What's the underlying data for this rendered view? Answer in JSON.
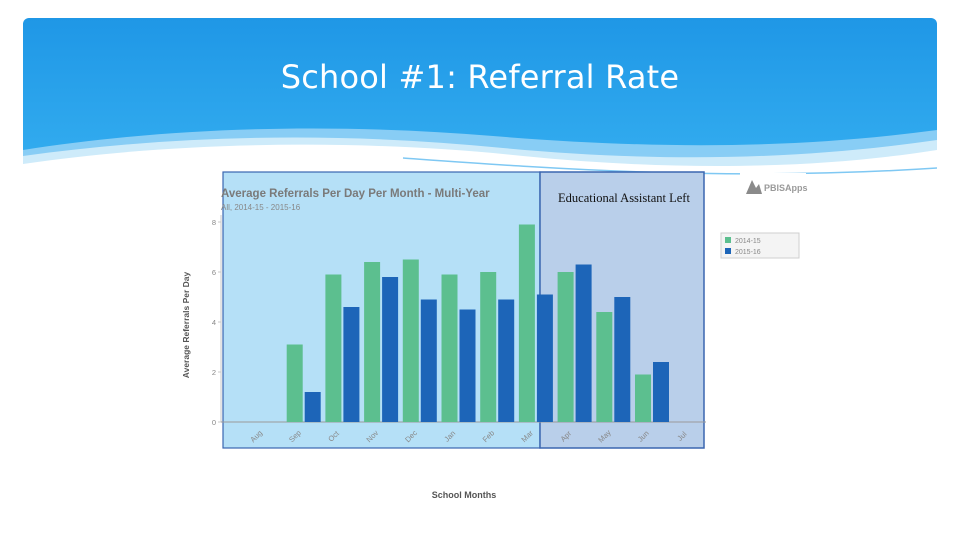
{
  "slide": {
    "title": "School #1: Referral Rate"
  },
  "annotation": {
    "text": "Educational Assistant Left"
  },
  "logo": {
    "text": "PBISApps"
  },
  "colors": {
    "series_2014": "#5cbf8f",
    "series_2015": "#1d65b8",
    "highlight_fill": "#b9cfea",
    "highlight_border": "#3a66b0",
    "plot_bg": "#b5e0f7"
  },
  "chart_data": {
    "type": "bar",
    "title": "Average Referrals Per Day Per Month - Multi-Year",
    "subtitle": "All, 2014-15 - 2015-16",
    "xlabel": "School Months",
    "ylabel": "Average Referrals Per Day",
    "ylim": [
      0,
      8
    ],
    "yticks": [
      "0",
      "2",
      "4",
      "6",
      "8"
    ],
    "grid": false,
    "legend_position": "right",
    "categories": [
      "Aug",
      "Sep",
      "Oct",
      "Nov",
      "Dec",
      "Jan",
      "Feb",
      "Mar",
      "Apr",
      "May",
      "Jun",
      "Jul"
    ],
    "series": [
      {
        "name": "2014-15",
        "values": [
          0,
          3.1,
          5.9,
          6.4,
          6.5,
          5.9,
          6.0,
          7.9,
          6.0,
          4.4,
          1.9,
          0
        ]
      },
      {
        "name": "2015-16",
        "values": [
          0,
          1.2,
          4.6,
          5.8,
          4.9,
          4.5,
          4.9,
          5.1,
          6.3,
          5.0,
          2.4,
          0
        ]
      }
    ]
  }
}
